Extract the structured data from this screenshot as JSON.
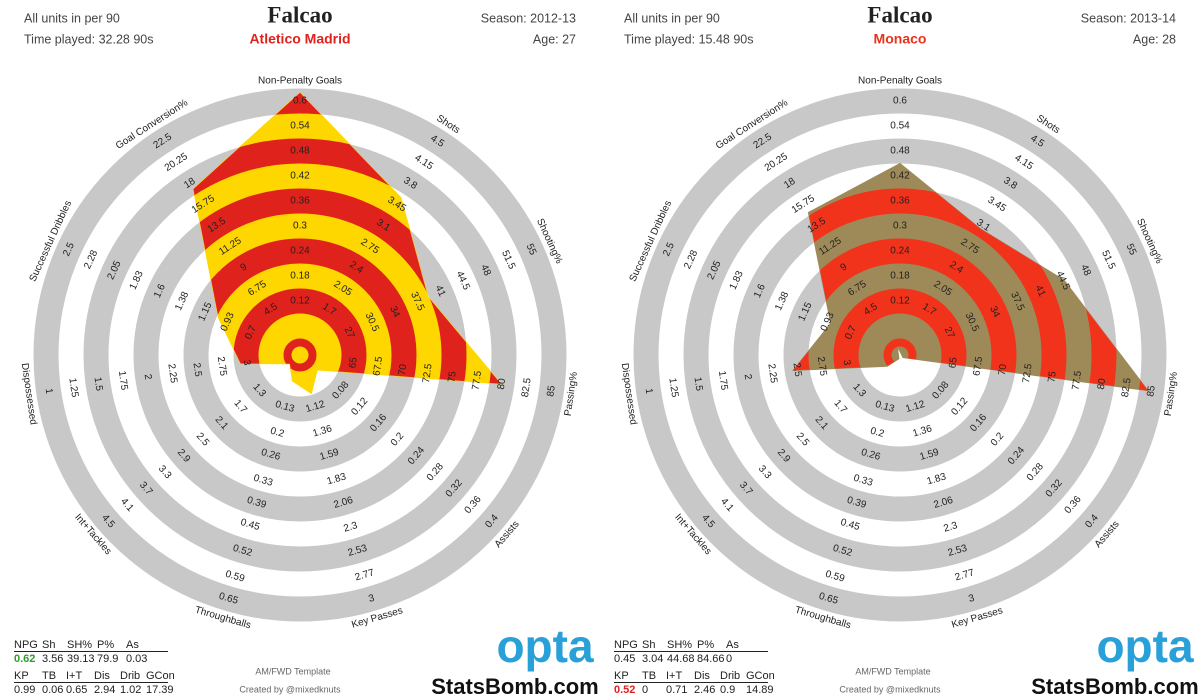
{
  "chart_data": [
    {
      "type": "radar",
      "title": "Falcao",
      "subtitle": "Atletico Madrid",
      "subtitle_color": "#e0221c",
      "notes_left": [
        "All units in per 90",
        "Time played: 32.28 90s"
      ],
      "notes_right": [
        "Season: 2012-13",
        "Age: 27"
      ],
      "categories": [
        "Non-Penalty Goals",
        "Shots",
        "Shooting%",
        "Passing%",
        "Assists",
        "Key Passes",
        "Throughballs",
        "Int+Tackles",
        "Dispossessed",
        "Successful Dribbles",
        "Goal Conversion%"
      ],
      "axes": [
        {
          "lim": [
            0,
            0.6
          ],
          "ticks": [
            0.12,
            0.18,
            0.24,
            0.3,
            0.36,
            0.42,
            0.48,
            0.54,
            0.6
          ]
        },
        {
          "lim": [
            1,
            4.5
          ],
          "ticks": [
            1.7,
            2.05,
            2.4,
            2.75,
            3.1,
            3.45,
            3.8,
            4.15,
            4.5
          ]
        },
        {
          "lim": [
            20,
            55
          ],
          "ticks": [
            27,
            30.5,
            34,
            37.5,
            41,
            44.5,
            48,
            51.5,
            55
          ]
        },
        {
          "lim": [
            60,
            85
          ],
          "ticks": [
            65,
            67.5,
            70,
            72.5,
            75,
            77.5,
            80,
            82.5,
            85
          ]
        },
        {
          "lim": [
            0,
            0.4
          ],
          "ticks": [
            0.08,
            0.12,
            0.16,
            0.2,
            0.24,
            0.28,
            0.32,
            0.36,
            0.4
          ]
        },
        {
          "lim": [
            0.65,
            3
          ],
          "ticks": [
            1.12,
            1.36,
            1.59,
            1.83,
            2.06,
            2.3,
            2.53,
            2.77,
            3
          ]
        },
        {
          "lim": [
            0,
            0.65
          ],
          "ticks": [
            0.13,
            0.2,
            0.26,
            0.33,
            0.39,
            0.45,
            0.52,
            0.59,
            0.65
          ]
        },
        {
          "lim": [
            0.5,
            4.5
          ],
          "ticks": [
            1.3,
            1.7,
            2.1,
            2.5,
            2.9,
            3.3,
            3.7,
            4.1,
            4.5
          ]
        },
        {
          "lim": [
            3.5,
            1
          ],
          "ticks": [
            3,
            2.75,
            2.5,
            2.25,
            2,
            1.75,
            1.5,
            1.25,
            1
          ]
        },
        {
          "lim": [
            0.25,
            2.5
          ],
          "ticks": [
            0.7,
            0.93,
            1.15,
            1.38,
            1.6,
            1.83,
            2.05,
            2.28,
            2.5
          ]
        },
        {
          "lim": [
            0,
            22.5
          ],
          "ticks": [
            4.5,
            6.75,
            9,
            11.25,
            13.5,
            15.75,
            18,
            20.25,
            22.5
          ]
        }
      ],
      "series": [
        {
          "values": [
            0.62,
            3.56,
            39.13,
            79.9,
            0.03,
            0.99,
            0.06,
            0.65,
            2.94,
            1.02,
            17.39
          ],
          "color": "#ffd700",
          "band_color": "#e0221c"
        }
      ],
      "ring_color": "#c8c8c8",
      "stat_labels": [
        "NPG",
        "Sh",
        "SH%",
        "P%",
        "As",
        "KP",
        "TB",
        "I+T",
        "Dis",
        "Drib",
        "GCon"
      ],
      "highlight": {
        "stat": 0,
        "color": "#2e9c2e"
      },
      "template": "AM/FWD Template",
      "credit": "Created by @mixedknuts",
      "logo": "opta",
      "logo_color": "#2aa0d8",
      "site": "StatsBomb.com"
    },
    {
      "type": "radar",
      "title": "Falcao",
      "subtitle": "Monaco",
      "subtitle_color": "#e8331c",
      "notes_left": [
        "All units in per 90",
        "Time played: 15.48 90s"
      ],
      "notes_right": [
        "Season: 2013-14",
        "Age: 28"
      ],
      "categories": [
        "Non-Penalty Goals",
        "Shots",
        "Shooting%",
        "Passing%",
        "Assists",
        "Key Passes",
        "Throughballs",
        "Int+Tackles",
        "Dispossessed",
        "Successful Dribbles",
        "Goal Conversion%"
      ],
      "axes": [
        {
          "lim": [
            0,
            0.6
          ],
          "ticks": [
            0.12,
            0.18,
            0.24,
            0.3,
            0.36,
            0.42,
            0.48,
            0.54,
            0.6
          ]
        },
        {
          "lim": [
            1,
            4.5
          ],
          "ticks": [
            1.7,
            2.05,
            2.4,
            2.75,
            3.1,
            3.45,
            3.8,
            4.15,
            4.5
          ]
        },
        {
          "lim": [
            20,
            55
          ],
          "ticks": [
            27,
            30.5,
            34,
            37.5,
            41,
            44.5,
            48,
            51.5,
            55
          ]
        },
        {
          "lim": [
            60,
            85
          ],
          "ticks": [
            65,
            67.5,
            70,
            72.5,
            75,
            77.5,
            80,
            82.5,
            85
          ]
        },
        {
          "lim": [
            0,
            0.4
          ],
          "ticks": [
            0.08,
            0.12,
            0.16,
            0.2,
            0.24,
            0.28,
            0.32,
            0.36,
            0.4
          ]
        },
        {
          "lim": [
            0.65,
            3
          ],
          "ticks": [
            1.12,
            1.36,
            1.59,
            1.83,
            2.06,
            2.3,
            2.53,
            2.77,
            3
          ]
        },
        {
          "lim": [
            0,
            0.65
          ],
          "ticks": [
            0.13,
            0.2,
            0.26,
            0.33,
            0.39,
            0.45,
            0.52,
            0.59,
            0.65
          ]
        },
        {
          "lim": [
            0.5,
            4.5
          ],
          "ticks": [
            1.3,
            1.7,
            2.1,
            2.5,
            2.9,
            3.3,
            3.7,
            4.1,
            4.5
          ]
        },
        {
          "lim": [
            3.5,
            1
          ],
          "ticks": [
            3,
            2.75,
            2.5,
            2.25,
            2,
            1.75,
            1.5,
            1.25,
            1
          ]
        },
        {
          "lim": [
            0.25,
            2.5
          ],
          "ticks": [
            0.7,
            0.93,
            1.15,
            1.38,
            1.6,
            1.83,
            2.05,
            2.28,
            2.5
          ]
        },
        {
          "lim": [
            0,
            22.5
          ],
          "ticks": [
            4.5,
            6.75,
            9,
            11.25,
            13.5,
            15.75,
            18,
            20.25,
            22.5
          ]
        }
      ],
      "series": [
        {
          "values": [
            0.45,
            3.04,
            44.68,
            84.66,
            0,
            0.52,
            0,
            0.71,
            2.46,
            0.9,
            14.89
          ],
          "color": "#9e8a58",
          "band_color": "#f2331c"
        }
      ],
      "ring_color": "#c8c8c8",
      "stat_labels": [
        "NPG",
        "Sh",
        "SH%",
        "P%",
        "As",
        "KP",
        "TB",
        "I+T",
        "Dis",
        "Drib",
        "GCon"
      ],
      "highlight": {
        "stat": 5,
        "color": "#e0221c"
      },
      "template": "AM/FWD Template",
      "credit": "Created by @mixedknuts",
      "logo": "opta",
      "logo_color": "#2aa0d8",
      "site": "StatsBomb.com"
    }
  ]
}
